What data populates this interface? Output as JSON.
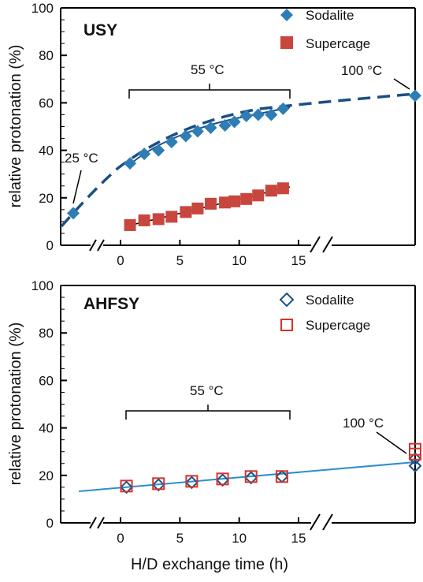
{
  "chart_data": [
    {
      "type": "scatter",
      "title": "USY",
      "ylabel": "relative protonation (%)",
      "xlabel": "",
      "ylim": [
        0,
        100
      ],
      "yticks": [
        0,
        20,
        40,
        60,
        80,
        100
      ],
      "xticks": [
        0,
        5,
        10,
        15
      ],
      "xlim": [
        0,
        15
      ],
      "axis_breaks": "broken x-axis: early point before 0 h, 100 °C point beyond 15 h",
      "grid": false,
      "legend_position": "top-right",
      "series": [
        {
          "name": "Sodalite",
          "marker": "filled-diamond",
          "color": "#2e7db5",
          "x": [
            0.8,
            2.0,
            3.2,
            4.3,
            5.5,
            6.5,
            7.6,
            8.8,
            9.6,
            10.6,
            11.6,
            12.7,
            13.7
          ],
          "y": [
            34.5,
            38.5,
            40.0,
            43.5,
            46.0,
            48.0,
            49.5,
            50.5,
            52.0,
            54.5,
            55.0,
            55.0,
            57.5
          ]
        },
        {
          "name": "Supercage",
          "marker": "filled-square",
          "color": "#c8463e",
          "x": [
            0.8,
            2.0,
            3.2,
            4.3,
            5.5,
            6.5,
            7.6,
            8.8,
            9.6,
            10.6,
            11.6,
            12.7,
            13.7
          ],
          "y": [
            8.5,
            10.5,
            11.0,
            12.0,
            14.0,
            15.5,
            17.5,
            18.0,
            18.5,
            19.5,
            21.0,
            23.0,
            24.0
          ]
        }
      ],
      "extra_points": [
        {
          "series": "Sodalite",
          "label": "25 °C",
          "y": 13.5,
          "region": "before-break"
        },
        {
          "series": "Sodalite",
          "label": "100 °C",
          "y": 63.0,
          "region": "after-break"
        }
      ],
      "bracket_label": "55 °C",
      "fit_line_color": "#1a4f85"
    },
    {
      "type": "scatter",
      "title": "AHFSY",
      "ylabel": "relative protonation (%)",
      "xlabel": "H/D exchange time (h)",
      "ylim": [
        0,
        100
      ],
      "yticks": [
        0,
        20,
        40,
        60,
        80,
        100
      ],
      "xticks": [
        0,
        5,
        10,
        15
      ],
      "xlim": [
        0,
        15
      ],
      "grid": false,
      "legend_position": "top-right",
      "series": [
        {
          "name": "Sodalite",
          "marker": "open-diamond",
          "color": "#1a4f85",
          "x": [
            0.5,
            3.2,
            6.0,
            8.6,
            11.0,
            13.6
          ],
          "y": [
            15.0,
            16.0,
            17.0,
            18.0,
            19.0,
            19.5
          ]
        },
        {
          "name": "Supercage",
          "marker": "open-square",
          "color": "#d8322c",
          "x": [
            0.5,
            3.2,
            6.0,
            8.6,
            11.0,
            13.6
          ],
          "y": [
            15.5,
            16.5,
            17.5,
            18.5,
            19.5,
            19.5
          ]
        }
      ],
      "extra_points": [
        {
          "series": "Sodalite",
          "label": "100 °C",
          "y": [
            24.0,
            27.0
          ],
          "region": "after-break"
        },
        {
          "series": "Supercage",
          "label": "100 °C",
          "y": [
            29.0,
            31.0
          ],
          "region": "after-break"
        }
      ],
      "bracket_label": "55 °C",
      "fit_line_color": "#2a8fcf"
    }
  ]
}
